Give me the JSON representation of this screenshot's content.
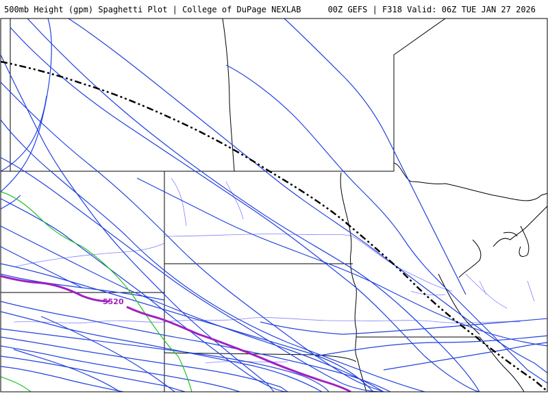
{
  "header": {
    "title": "500mb Height (gpm) Spaghetti Plot | College of DuPage NEXLAB",
    "run_info": "00Z GEFS | F318 Valid: 06Z TUE JAN 27 2026"
  },
  "map": {
    "contour_label": "5520",
    "colors": {
      "ensemble_members": "#2040e0",
      "mean_line": "#000000",
      "highlight_member": "#a020c0",
      "alt_member": "#20c020",
      "state_borders": "#000000",
      "rivers": "#8080ff"
    }
  }
}
